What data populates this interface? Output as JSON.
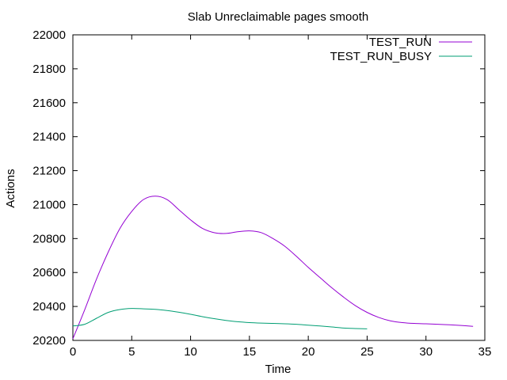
{
  "chart_data": {
    "type": "line",
    "title": "Slab Unreclaimable pages smooth",
    "xlabel": "Time",
    "ylabel": "Actions",
    "xlim": [
      0,
      35
    ],
    "ylim": [
      20200,
      22000
    ],
    "x_ticks": [
      0,
      5,
      10,
      15,
      20,
      25,
      30,
      35
    ],
    "y_ticks": [
      20200,
      20400,
      20600,
      20800,
      21000,
      21200,
      21400,
      21600,
      21800,
      22000
    ],
    "grid": false,
    "legend_position": "top-right",
    "series": [
      {
        "name": "TEST_RUN",
        "color": "#9400d3",
        "points": [
          [
            0,
            20210
          ],
          [
            1,
            20380
          ],
          [
            2,
            20560
          ],
          [
            3,
            20720
          ],
          [
            4,
            20860
          ],
          [
            5,
            20960
          ],
          [
            6,
            21030
          ],
          [
            7,
            21050
          ],
          [
            8,
            21030
          ],
          [
            9,
            20970
          ],
          [
            10,
            20910
          ],
          [
            11,
            20860
          ],
          [
            12,
            20835
          ],
          [
            13,
            20830
          ],
          [
            14,
            20840
          ],
          [
            15,
            20845
          ],
          [
            16,
            20835
          ],
          [
            17,
            20800
          ],
          [
            18,
            20755
          ],
          [
            19,
            20695
          ],
          [
            20,
            20630
          ],
          [
            21,
            20570
          ],
          [
            22,
            20510
          ],
          [
            23,
            20455
          ],
          [
            24,
            20405
          ],
          [
            25,
            20365
          ],
          [
            26,
            20335
          ],
          [
            27,
            20315
          ],
          [
            28,
            20305
          ],
          [
            29,
            20300
          ],
          [
            30,
            20298
          ],
          [
            31,
            20295
          ],
          [
            32,
            20292
          ],
          [
            33,
            20288
          ],
          [
            34,
            20283
          ]
        ]
      },
      {
        "name": "TEST_RUN_BUSY",
        "color": "#009e73",
        "points": [
          [
            0,
            20285
          ],
          [
            1,
            20295
          ],
          [
            2,
            20330
          ],
          [
            3,
            20365
          ],
          [
            4,
            20382
          ],
          [
            5,
            20388
          ],
          [
            6,
            20386
          ],
          [
            7,
            20383
          ],
          [
            8,
            20376
          ],
          [
            9,
            20366
          ],
          [
            10,
            20354
          ],
          [
            11,
            20340
          ],
          [
            12,
            20328
          ],
          [
            13,
            20318
          ],
          [
            14,
            20310
          ],
          [
            15,
            20305
          ],
          [
            16,
            20302
          ],
          [
            17,
            20300
          ],
          [
            18,
            20298
          ],
          [
            19,
            20295
          ],
          [
            20,
            20290
          ],
          [
            21,
            20285
          ],
          [
            22,
            20279
          ],
          [
            23,
            20273
          ],
          [
            24,
            20270
          ],
          [
            25,
            20268
          ]
        ]
      }
    ]
  }
}
